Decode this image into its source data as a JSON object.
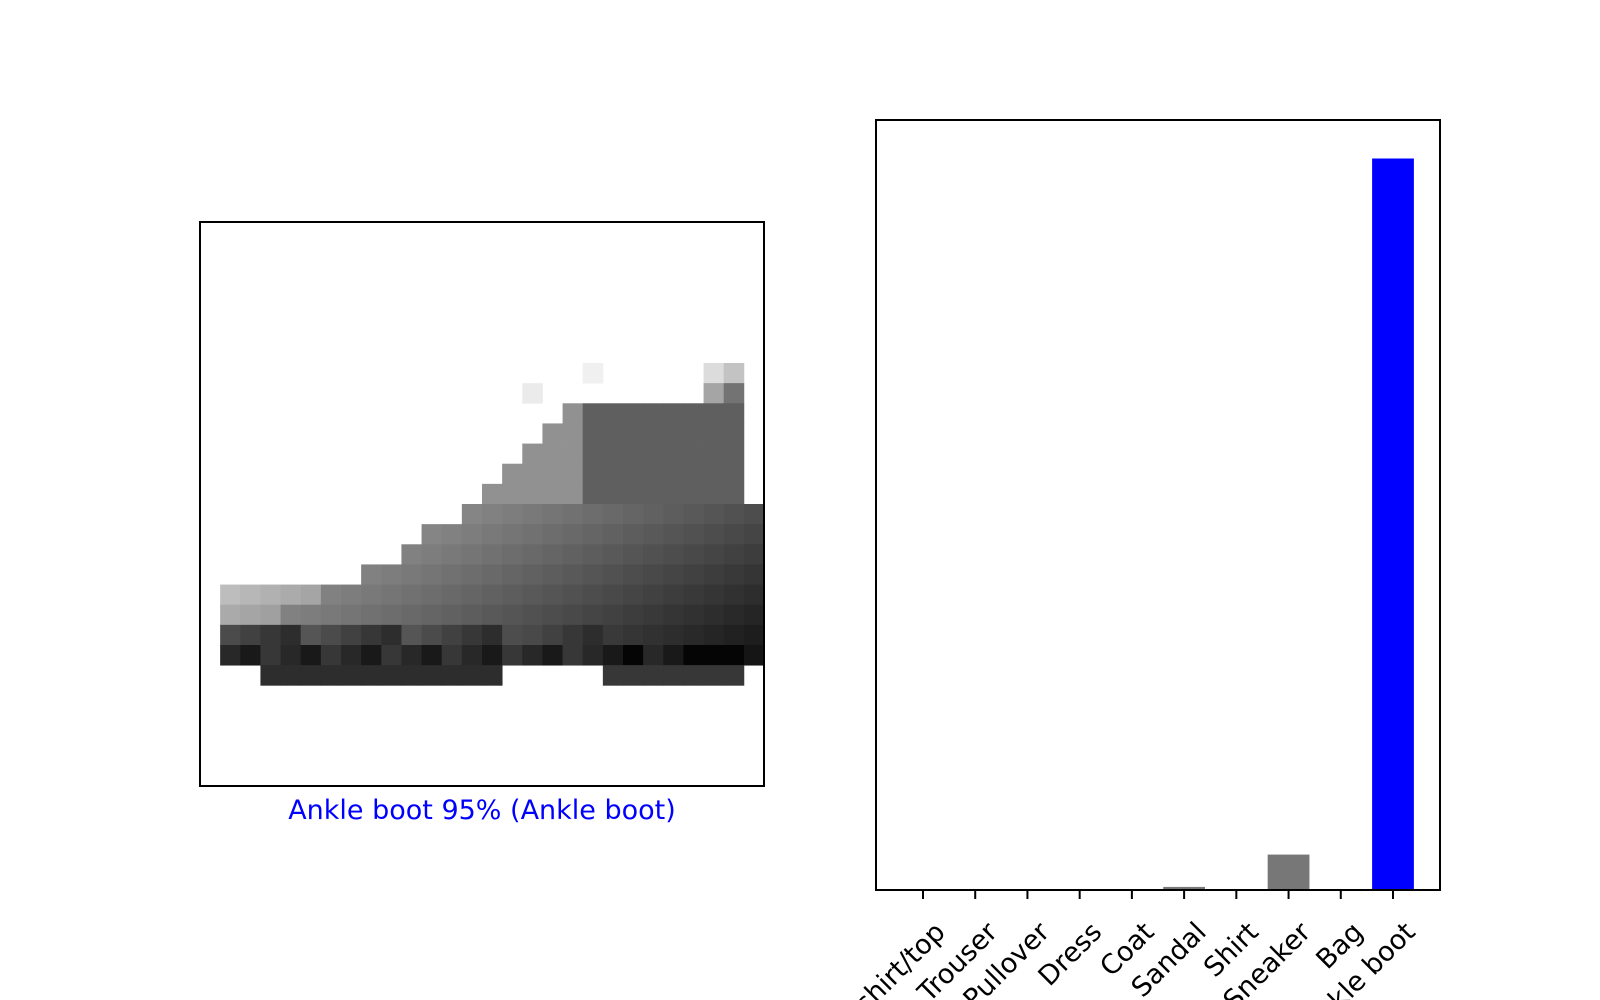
{
  "figure": {
    "image_panel": {
      "caption": "Ankle boot 95% (Ankle boot)",
      "caption_color": "#0000ff",
      "colormap": "binary (white = 0, black = 255)",
      "axes_ticks": "none"
    }
  },
  "chart_data": {
    "type": "bar",
    "categories": [
      "T-shirt/top",
      "Trouser",
      "Pullover",
      "Dress",
      "Coat",
      "Sandal",
      "Shirt",
      "Sneaker",
      "Bag",
      "Ankle boot"
    ],
    "values": [
      0.0,
      0.0,
      0.0,
      0.0,
      0.0,
      0.004,
      0.0,
      0.046,
      0.0,
      0.95
    ],
    "bar_colors": [
      "#777777",
      "#777777",
      "#777777",
      "#777777",
      "#777777",
      "#777777",
      "#777777",
      "#777777",
      "#777777",
      "#0000ff"
    ],
    "default_color": "#777777",
    "predicted_color": "#0000ff",
    "title": "",
    "xlabel": "",
    "ylabel": "",
    "ylim": [
      0,
      1
    ],
    "yticks": "none",
    "grid": false,
    "xtick_rotation": 45
  }
}
